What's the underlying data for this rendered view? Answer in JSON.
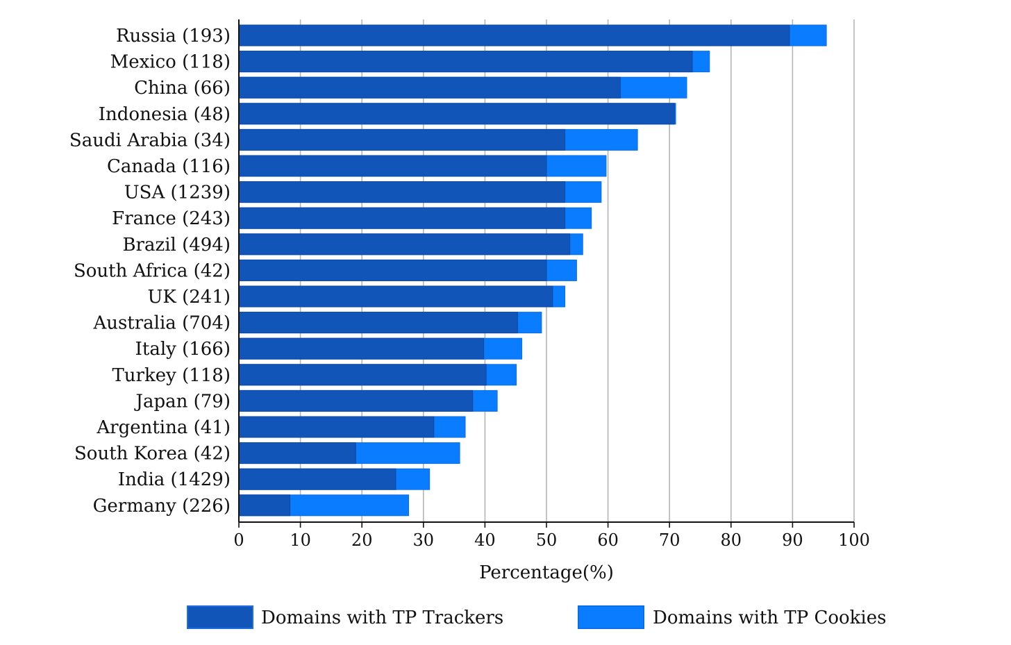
{
  "chart_data": {
    "type": "bar",
    "orientation": "horizontal",
    "stacked": false,
    "categories": [
      "Russia (193)",
      "Mexico (118)",
      "China (66)",
      "Indonesia (48)",
      "Saudi Arabia (34)",
      "Canada (116)",
      "USA (1239)",
      "France (243)",
      "Brazil (494)",
      "South Africa (42)",
      "UK (241)",
      "Australia (704)",
      "Italy (166)",
      "Turkey (118)",
      "Japan (79)",
      "Argentina (41)",
      "South Korea (42)",
      "India (1429)",
      "Germany (226)"
    ],
    "series": [
      {
        "name": "Domains with TP Cookies",
        "color": "#0a7cff",
        "values": [
          95.5,
          76.5,
          72.8,
          71,
          64.8,
          59.7,
          58.9,
          57.3,
          55.9,
          54.9,
          53,
          49.2,
          46,
          45.1,
          42,
          36.8,
          35.9,
          31,
          27.6
        ]
      },
      {
        "name": "Domains with TP Trackers",
        "color": "#1155b9",
        "values": [
          89.5,
          73.7,
          62,
          70.8,
          53,
          50,
          53,
          53,
          53.8,
          50,
          51,
          45.3,
          39.8,
          40.2,
          38,
          31.7,
          19,
          25.5,
          8.3
        ]
      }
    ],
    "xlabel": "Percentage(%)",
    "xlim": [
      0,
      100
    ],
    "xticks": [
      "0",
      "10",
      "20",
      "30",
      "40",
      "50",
      "60",
      "70",
      "80",
      "90",
      "100"
    ],
    "grid": "vertical",
    "legend": {
      "position": "bottom",
      "entries": [
        "Domains with TP Trackers",
        "Domains with TP Cookies"
      ]
    }
  }
}
